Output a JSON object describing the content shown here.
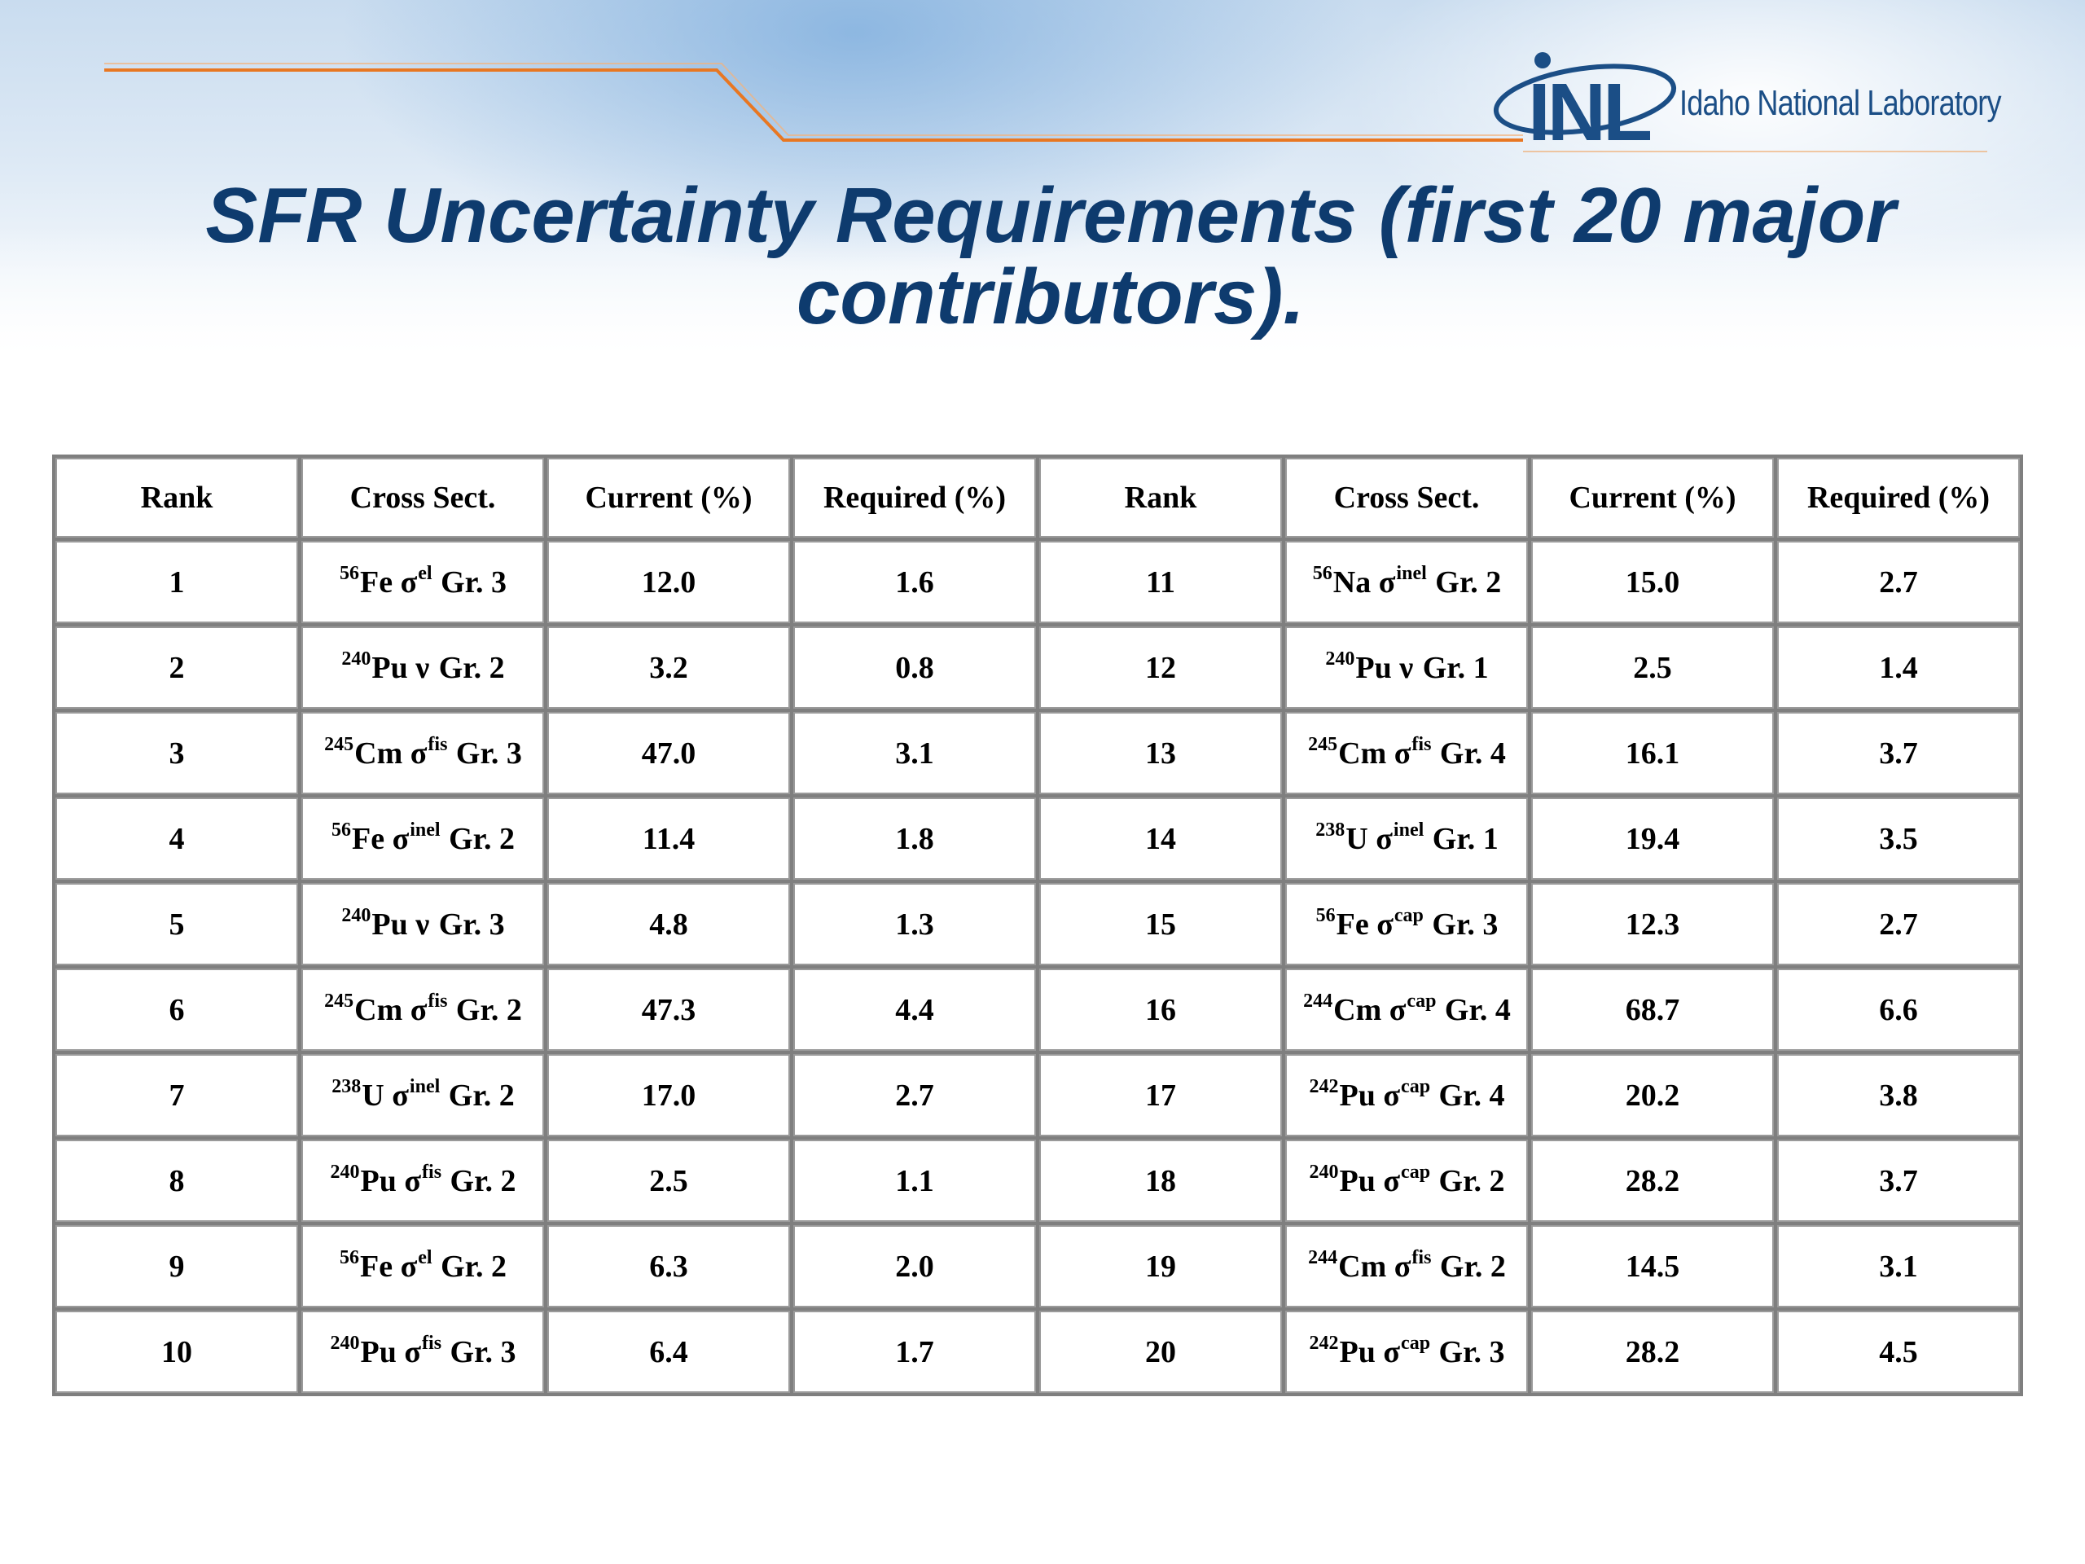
{
  "header": {
    "logo_mark": "INL",
    "logo_text": "Idaho National Laboratory",
    "icon": "inl-logo-icon"
  },
  "title": "SFR Uncertainty Requirements (first 20 major contributors).",
  "table": {
    "headers": [
      "Rank",
      "Cross Sect.",
      "Current (%)",
      "Required (%)",
      "Rank",
      "Cross Sect.",
      "Current (%)",
      "Required (%)"
    ],
    "rows": [
      {
        "l": {
          "rank": "1",
          "iso": "56",
          "el": "Fe",
          "sym": "σ",
          "type": "el",
          "grp": "Gr. 3",
          "cur": "12.0",
          "req": "1.6"
        },
        "r": {
          "rank": "11",
          "iso": "56",
          "el": "Na",
          "sym": "σ",
          "type": "inel",
          "grp": "Gr. 2",
          "cur": "15.0",
          "req": "2.7"
        }
      },
      {
        "l": {
          "rank": "2",
          "iso": "240",
          "el": "Pu",
          "sym": "ν",
          "type": "",
          "grp": "Gr. 2",
          "cur": "3.2",
          "req": "0.8"
        },
        "r": {
          "rank": "12",
          "iso": "240",
          "el": "Pu",
          "sym": "ν",
          "type": "",
          "grp": "Gr. 1",
          "cur": "2.5",
          "req": "1.4"
        }
      },
      {
        "l": {
          "rank": "3",
          "iso": "245",
          "el": "Cm",
          "sym": "σ",
          "type": "fis",
          "grp": "Gr. 3",
          "cur": "47.0",
          "req": "3.1"
        },
        "r": {
          "rank": "13",
          "iso": "245",
          "el": "Cm",
          "sym": "σ",
          "type": "fis",
          "grp": "Gr. 4",
          "cur": "16.1",
          "req": "3.7"
        }
      },
      {
        "l": {
          "rank": "4",
          "iso": "56",
          "el": "Fe",
          "sym": "σ",
          "type": "inel",
          "grp": "Gr. 2",
          "cur": "11.4",
          "req": "1.8"
        },
        "r": {
          "rank": "14",
          "iso": "238",
          "el": "U",
          "sym": "σ",
          "type": "inel",
          "grp": "Gr. 1",
          "cur": "19.4",
          "req": "3.5"
        }
      },
      {
        "l": {
          "rank": "5",
          "iso": "240",
          "el": "Pu",
          "sym": "ν",
          "type": "",
          "grp": "Gr. 3",
          "cur": "4.8",
          "req": "1.3"
        },
        "r": {
          "rank": "15",
          "iso": "56",
          "el": "Fe",
          "sym": "σ",
          "type": "cap",
          "grp": "Gr. 3",
          "cur": "12.3",
          "req": "2.7"
        }
      },
      {
        "l": {
          "rank": "6",
          "iso": "245",
          "el": "Cm",
          "sym": "σ",
          "type": "fis",
          "grp": "Gr. 2",
          "cur": "47.3",
          "req": "4.4"
        },
        "r": {
          "rank": "16",
          "iso": "244",
          "el": "Cm",
          "sym": "σ",
          "type": "cap",
          "grp": "Gr. 4",
          "cur": "68.7",
          "req": "6.6"
        }
      },
      {
        "l": {
          "rank": "7",
          "iso": "238",
          "el": "U",
          "sym": "σ",
          "type": "inel",
          "grp": "Gr. 2",
          "cur": "17.0",
          "req": "2.7"
        },
        "r": {
          "rank": "17",
          "iso": "242",
          "el": "Pu",
          "sym": "σ",
          "type": "cap",
          "grp": "Gr. 4",
          "cur": "20.2",
          "req": "3.8"
        }
      },
      {
        "l": {
          "rank": "8",
          "iso": "240",
          "el": "Pu",
          "sym": "σ",
          "type": "fis",
          "grp": "Gr. 2",
          "cur": "2.5",
          "req": "1.1"
        },
        "r": {
          "rank": "18",
          "iso": "240",
          "el": "Pu",
          "sym": "σ",
          "type": "cap",
          "grp": "Gr. 2",
          "cur": "28.2",
          "req": "3.7"
        }
      },
      {
        "l": {
          "rank": "9",
          "iso": "56",
          "el": "Fe",
          "sym": "σ",
          "type": "el",
          "grp": "Gr. 2",
          "cur": "6.3",
          "req": "2.0"
        },
        "r": {
          "rank": "19",
          "iso": "244",
          "el": "Cm",
          "sym": "σ",
          "type": "fis",
          "grp": "Gr. 2",
          "cur": "14.5",
          "req": "3.1"
        }
      },
      {
        "l": {
          "rank": "10",
          "iso": "240",
          "el": "Pu",
          "sym": "σ",
          "type": "fis",
          "grp": "Gr. 3",
          "cur": "6.4",
          "req": "1.7"
        },
        "r": {
          "rank": "20",
          "iso": "242",
          "el": "Pu",
          "sym": "σ",
          "type": "cap",
          "grp": "Gr. 3",
          "cur": "28.2",
          "req": "4.5"
        }
      }
    ]
  },
  "colors": {
    "title": "#0e3b6e",
    "accent_orange": "#e87722",
    "logo_blue": "#1b4e86"
  }
}
